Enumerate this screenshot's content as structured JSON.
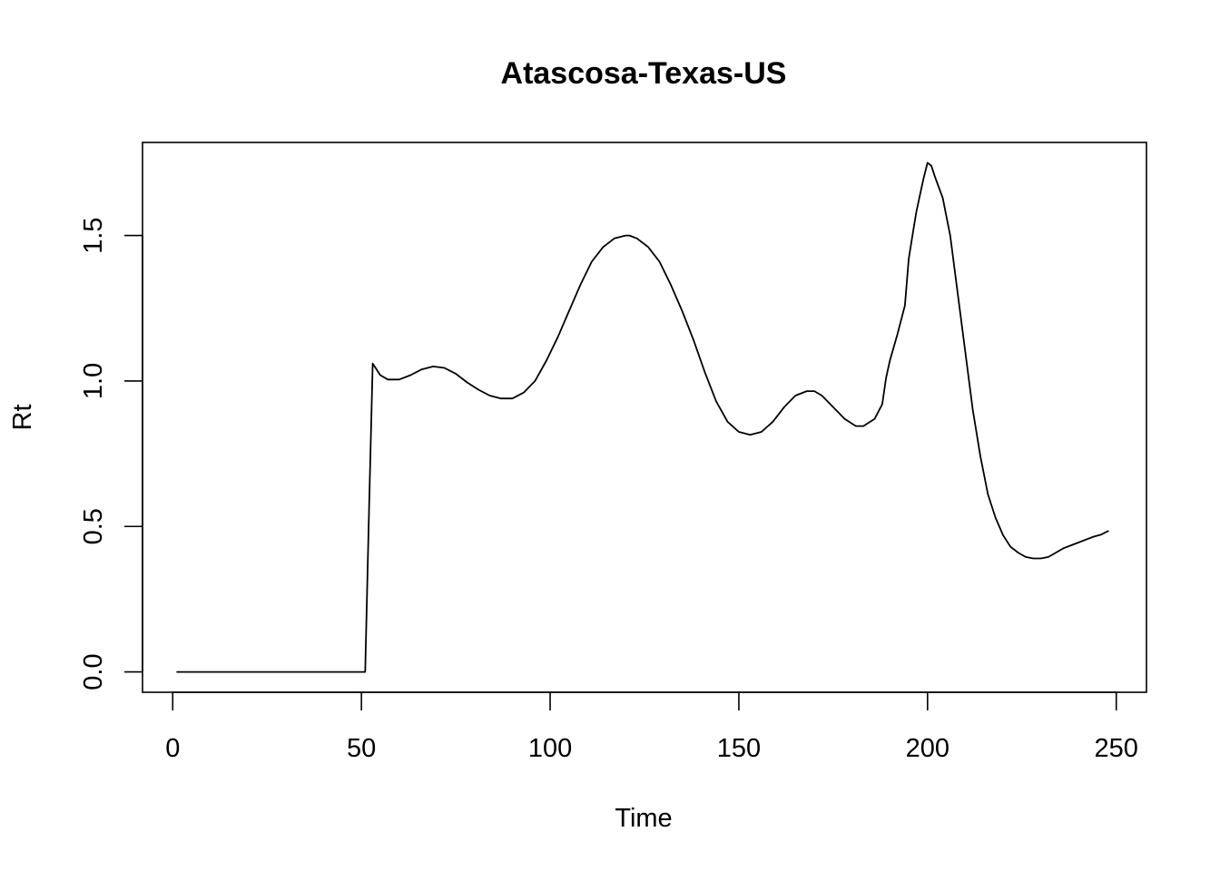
{
  "chart_data": {
    "type": "line",
    "title": "Atascosa-Texas-US",
    "xlabel": "Time",
    "ylabel": "Rt",
    "xlim": [
      -8,
      258
    ],
    "ylim": [
      -0.07,
      1.82
    ],
    "x_ticks": [
      0,
      50,
      100,
      150,
      200,
      250
    ],
    "y_ticks": [
      0.0,
      0.5,
      1.0,
      1.5
    ],
    "x_tick_labels": [
      "0",
      "50",
      "100",
      "150",
      "200",
      "250"
    ],
    "y_tick_labels": [
      "0.0",
      "0.5",
      "1.0",
      "1.5"
    ],
    "grid": false,
    "series": [
      {
        "color": "#000000",
        "x": [
          1,
          51,
          52,
          53,
          54,
          55,
          57,
          60,
          63,
          66,
          69,
          72,
          75,
          78,
          81,
          84,
          87,
          90,
          93,
          96,
          99,
          102,
          105,
          108,
          111,
          114,
          117,
          120,
          121,
          123,
          126,
          129,
          132,
          135,
          138,
          141,
          144,
          147,
          150,
          153,
          156,
          159,
          162,
          165,
          168,
          170,
          172,
          175,
          178,
          181,
          183,
          186,
          188,
          189,
          190,
          192,
          194,
          195,
          196,
          197,
          198,
          199,
          200,
          201,
          202,
          204,
          206,
          208,
          210,
          212,
          214,
          216,
          218,
          220,
          222,
          224,
          226,
          228,
          230,
          232,
          234,
          236,
          238,
          240,
          242,
          244,
          246,
          248
        ],
        "y": [
          0.0,
          0.0,
          0.55,
          1.06,
          1.04,
          1.02,
          1.005,
          1.005,
          1.02,
          1.04,
          1.05,
          1.045,
          1.025,
          0.995,
          0.97,
          0.95,
          0.94,
          0.94,
          0.96,
          1.0,
          1.07,
          1.15,
          1.24,
          1.33,
          1.41,
          1.46,
          1.49,
          1.5,
          1.5,
          1.49,
          1.46,
          1.41,
          1.33,
          1.24,
          1.14,
          1.03,
          0.93,
          0.86,
          0.825,
          0.815,
          0.825,
          0.86,
          0.91,
          0.95,
          0.965,
          0.965,
          0.95,
          0.91,
          0.87,
          0.845,
          0.845,
          0.87,
          0.92,
          1.01,
          1.07,
          1.16,
          1.26,
          1.42,
          1.5,
          1.58,
          1.64,
          1.7,
          1.75,
          1.74,
          1.7,
          1.63,
          1.5,
          1.3,
          1.1,
          0.9,
          0.74,
          0.61,
          0.53,
          0.47,
          0.43,
          0.41,
          0.395,
          0.39,
          0.39,
          0.395,
          0.41,
          0.425,
          0.435,
          0.445,
          0.455,
          0.465,
          0.472,
          0.485
        ]
      }
    ]
  }
}
